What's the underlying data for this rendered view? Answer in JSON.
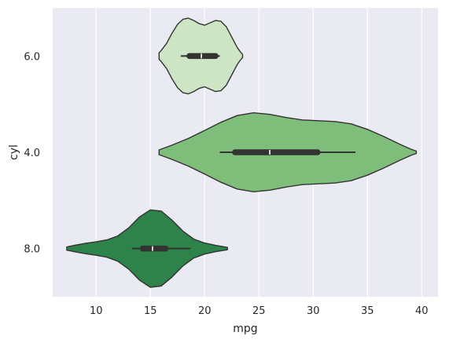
{
  "chart_data": {
    "type": "violin",
    "orientation": "horizontal",
    "xlabel": "mpg",
    "ylabel": "cyl",
    "xlim": [
      6.0,
      41.5
    ],
    "xticks": [
      10,
      15,
      20,
      25,
      30,
      35,
      40
    ],
    "categories": [
      "6.0",
      "4.0",
      "8.0"
    ],
    "grid": true,
    "colors": {
      "plot_bg": "#eaeaf2",
      "grid": "#ffffff",
      "outline": "#333333",
      "box": "#333333",
      "median": "#ffffff"
    },
    "violins": [
      {
        "category": "6.0",
        "color": "#cde5c5",
        "range": [
          15.8,
          23.5
        ],
        "stats": {
          "whisker_low": 17.8,
          "q1": 18.6,
          "median": 19.7,
          "q3": 21.0,
          "whisker_high": 21.4
        },
        "density": [
          [
            15.8,
            0.08
          ],
          [
            16.0,
            0.14
          ],
          [
            16.5,
            0.32
          ],
          [
            17.0,
            0.58
          ],
          [
            17.5,
            0.8
          ],
          [
            18.0,
            0.93
          ],
          [
            18.5,
            0.96
          ],
          [
            19.0,
            0.9
          ],
          [
            19.5,
            0.82
          ],
          [
            20.0,
            0.78
          ],
          [
            20.5,
            0.84
          ],
          [
            21.0,
            0.9
          ],
          [
            21.5,
            0.88
          ],
          [
            22.0,
            0.74
          ],
          [
            22.5,
            0.48
          ],
          [
            23.0,
            0.22
          ],
          [
            23.3,
            0.1
          ],
          [
            23.5,
            0.04
          ]
        ]
      },
      {
        "category": "4.0",
        "color": "#7fbd7b",
        "range": [
          15.8,
          39.5
        ],
        "stats": {
          "whisker_low": 21.4,
          "q1": 22.8,
          "median": 26.0,
          "q3": 30.4,
          "whisker_high": 33.9
        },
        "density": [
          [
            15.8,
            0.06
          ],
          [
            17.0,
            0.18
          ],
          [
            18.5,
            0.35
          ],
          [
            20.0,
            0.55
          ],
          [
            21.5,
            0.76
          ],
          [
            23.0,
            0.93
          ],
          [
            24.5,
            1.0
          ],
          [
            26.0,
            0.96
          ],
          [
            27.5,
            0.88
          ],
          [
            29.0,
            0.82
          ],
          [
            30.5,
            0.8
          ],
          [
            32.0,
            0.78
          ],
          [
            33.5,
            0.72
          ],
          [
            35.0,
            0.58
          ],
          [
            36.5,
            0.4
          ],
          [
            38.0,
            0.2
          ],
          [
            39.0,
            0.08
          ],
          [
            39.5,
            0.03
          ]
        ]
      },
      {
        "category": "8.0",
        "color": "#2e834a",
        "range": [
          7.3,
          22.1
        ],
        "stats": {
          "whisker_low": 13.3,
          "q1": 14.3,
          "median": 15.2,
          "q3": 16.4,
          "whisker_high": 18.7
        },
        "density": [
          [
            7.3,
            0.04
          ],
          [
            8.0,
            0.08
          ],
          [
            9.0,
            0.13
          ],
          [
            10.0,
            0.17
          ],
          [
            11.0,
            0.22
          ],
          [
            12.0,
            0.32
          ],
          [
            13.0,
            0.52
          ],
          [
            14.0,
            0.8
          ],
          [
            15.0,
            0.98
          ],
          [
            16.0,
            0.95
          ],
          [
            17.0,
            0.72
          ],
          [
            18.0,
            0.44
          ],
          [
            19.0,
            0.24
          ],
          [
            20.0,
            0.14
          ],
          [
            21.0,
            0.08
          ],
          [
            22.1,
            0.03
          ]
        ]
      }
    ]
  }
}
